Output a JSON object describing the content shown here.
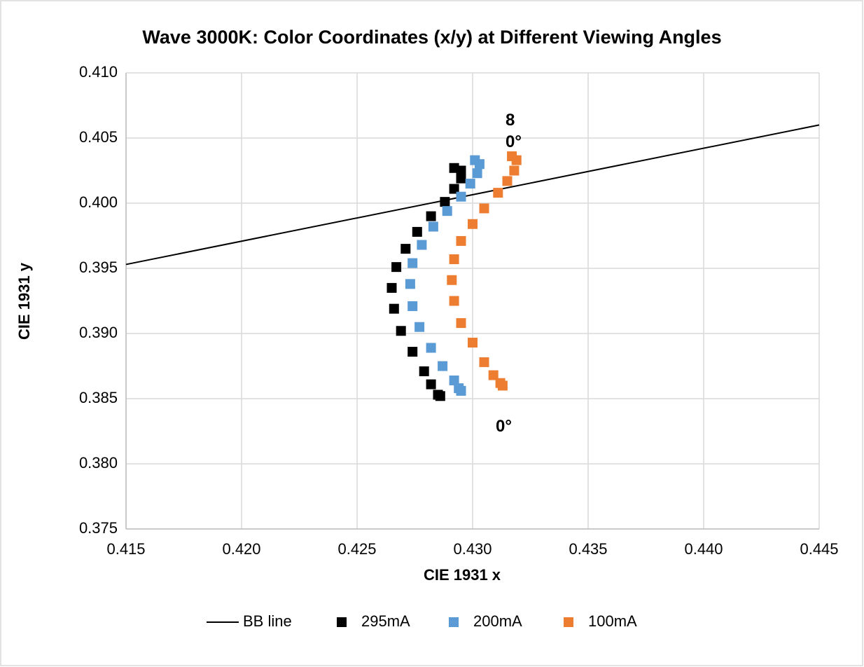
{
  "chart_data": {
    "type": "scatter",
    "title": "Wave 3000K: Color Coordinates (x/y) at Different Viewing Angles",
    "x_label": "CIE 1931 x",
    "y_label": "CIE 1931 y",
    "xlim": [
      0.415,
      0.445
    ],
    "ylim": [
      0.375,
      0.41
    ],
    "xticks": [
      0.415,
      {
        "value": 0.42,
        "label": "0.420"
      },
      0.425,
      {
        "value": 0.43,
        "label": "0.430"
      },
      0.435,
      {
        "value": 0.44,
        "label": "0.440"
      },
      0.445
    ],
    "yticks": [
      0.375,
      {
        "value": 0.38,
        "label": "0.380"
      },
      0.385,
      {
        "value": 0.39,
        "label": "0.390"
      },
      0.395,
      {
        "value": 0.4,
        "label": "0.400"
      },
      0.405,
      {
        "value": 0.41,
        "label": "0.410"
      }
    ],
    "grid": true,
    "legend": "bottom",
    "annotations": [
      "80°",
      "0°"
    ],
    "series": [
      {
        "name": "BB line",
        "mode": "line",
        "color": "#000000",
        "x": [
          0.415,
          0.445
        ],
        "values": [
          0.3953,
          0.406
        ]
      },
      {
        "name": "295mA",
        "mode": "markers",
        "color": "#000000",
        "x": [
          0.4292,
          0.4295,
          0.4295,
          0.4292,
          0.4288,
          0.4282,
          0.4276,
          0.4271,
          0.4267,
          0.4265,
          0.4266,
          0.4269,
          0.4274,
          0.4279,
          0.4282,
          0.4285,
          0.4286
        ],
        "values": [
          0.4027,
          0.4025,
          0.4019,
          0.4011,
          0.4001,
          0.399,
          0.3978,
          0.3965,
          0.3951,
          0.3935,
          0.3919,
          0.3902,
          0.3886,
          0.3871,
          0.3861,
          0.3853,
          0.3852
        ]
      },
      {
        "name": "200mA",
        "mode": "markers",
        "color": "#5b9bd5",
        "x": [
          0.4301,
          0.4303,
          0.4302,
          0.4299,
          0.4295,
          0.4289,
          0.4283,
          0.4278,
          0.4274,
          0.4273,
          0.4274,
          0.4277,
          0.4282,
          0.4287,
          0.4292,
          0.4294,
          0.4295
        ],
        "values": [
          0.4033,
          0.403,
          0.4023,
          0.4015,
          0.4005,
          0.3994,
          0.3982,
          0.3968,
          0.3954,
          0.3938,
          0.3921,
          0.3905,
          0.3889,
          0.3875,
          0.3864,
          0.3858,
          0.3856
        ]
      },
      {
        "name": "100mA",
        "mode": "markers",
        "color": "#ed7d31",
        "x": [
          0.4317,
          0.4319,
          0.4318,
          0.4315,
          0.4311,
          0.4305,
          0.43,
          0.4295,
          0.4292,
          0.4291,
          0.4292,
          0.4295,
          0.43,
          0.4305,
          0.4309,
          0.4312,
          0.4313
        ],
        "values": [
          0.4036,
          0.4033,
          0.4025,
          0.4017,
          0.4008,
          0.3996,
          0.3984,
          0.3971,
          0.3957,
          0.3941,
          0.3925,
          0.3908,
          0.3893,
          0.3878,
          0.3868,
          0.3862,
          0.386
        ]
      }
    ]
  }
}
